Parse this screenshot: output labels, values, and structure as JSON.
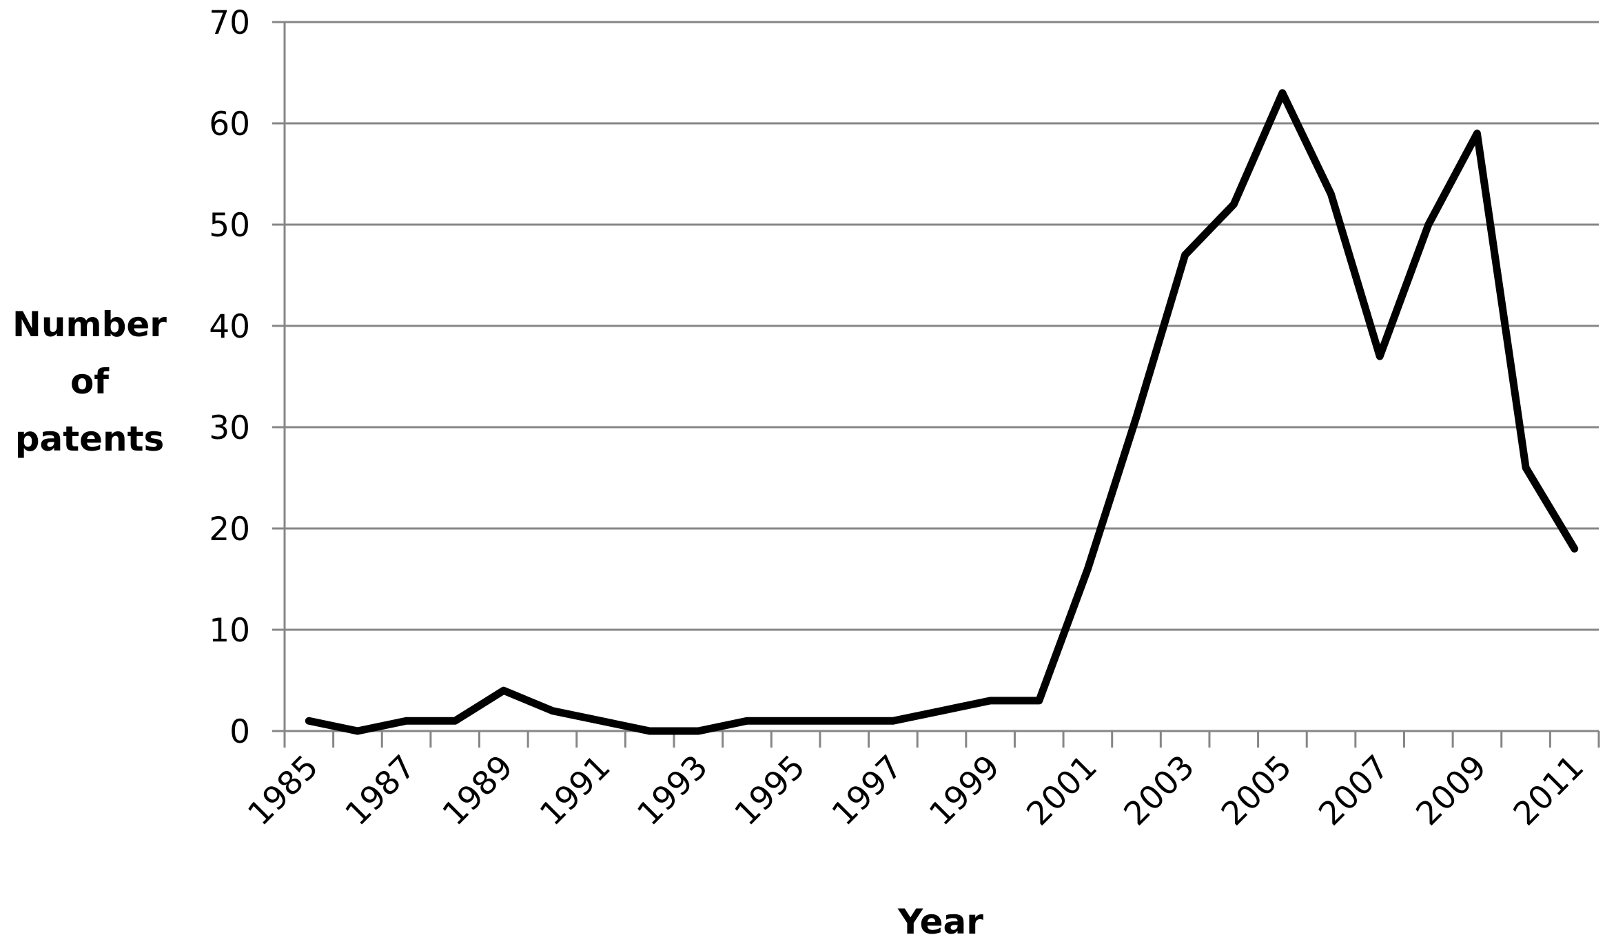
{
  "chart_data": {
    "type": "line",
    "title": "",
    "xlabel": "Year",
    "ylabel_lines": [
      "Number",
      "of",
      "patents"
    ],
    "ylim": [
      0,
      70
    ],
    "y_ticks": [
      0,
      10,
      20,
      30,
      40,
      50,
      60,
      70
    ],
    "x_tick_labels": [
      "1985",
      "1987",
      "1989",
      "1991",
      "1993",
      "1995",
      "1997",
      "1999",
      "2001",
      "2003",
      "2005",
      "2007",
      "2009",
      "2011"
    ],
    "grid": true,
    "line_color": "#000000",
    "grid_color": "#868686",
    "series": [
      {
        "x": [
          1985,
          1986,
          1987,
          1988,
          1989,
          1990,
          1991,
          1992,
          1993,
          1994,
          1995,
          1996,
          1997,
          1998,
          1999,
          2000,
          2001,
          2002,
          2003,
          2004,
          2005,
          2006,
          2007,
          2008,
          2009,
          2010,
          2011
        ],
        "values": [
          1,
          0,
          1,
          1,
          4,
          2,
          1,
          0,
          0,
          1,
          1,
          1,
          1,
          2,
          3,
          3,
          16,
          31,
          47,
          52,
          63,
          53,
          37,
          50,
          59,
          26,
          18
        ]
      }
    ]
  }
}
